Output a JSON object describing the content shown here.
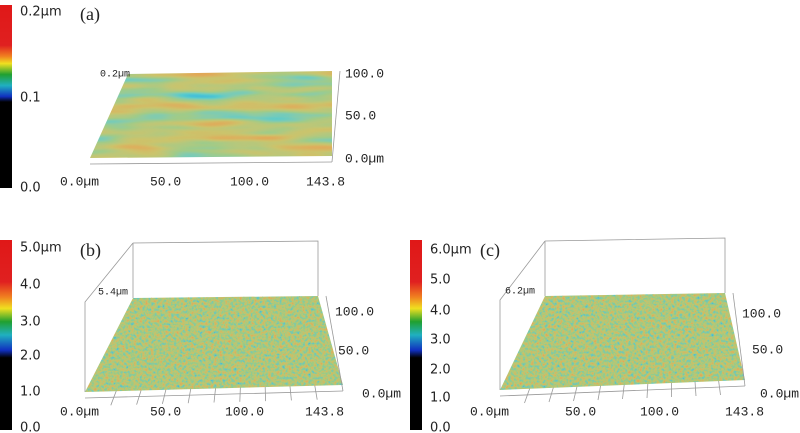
{
  "panels": [
    {
      "label": "(a)",
      "colorbar_ticks": [
        "0.2µm",
        "0.1",
        "0.0"
      ],
      "peak": "0.2µm",
      "x_ticks": [
        "0.0µm",
        "50.0",
        "100.0",
        "143.8"
      ],
      "y_ticks": [
        "100.0",
        "50.0",
        "0.0µm"
      ]
    },
    {
      "label": "(b)",
      "colorbar_ticks": [
        "5.0µm",
        "4.0",
        "3.0",
        "2.0",
        "1.0",
        "0.0"
      ],
      "peak": "5.4µm",
      "x_ticks": [
        "0.0µm",
        "50.0",
        "100.0",
        "143.8"
      ],
      "y_ticks": [
        "100.0",
        "50.0",
        "0.0µm"
      ]
    },
    {
      "label": "(c)",
      "colorbar_ticks": [
        "6.0µm",
        "5.0",
        "4.0",
        "3.0",
        "2.0",
        "1.0",
        "0.0"
      ],
      "peak": "6.2µm",
      "x_ticks": [
        "0.0µm",
        "50.0",
        "100.0",
        "143.8"
      ],
      "y_ticks": [
        "100.0",
        "50.0",
        "0.0µm"
      ]
    }
  ]
}
